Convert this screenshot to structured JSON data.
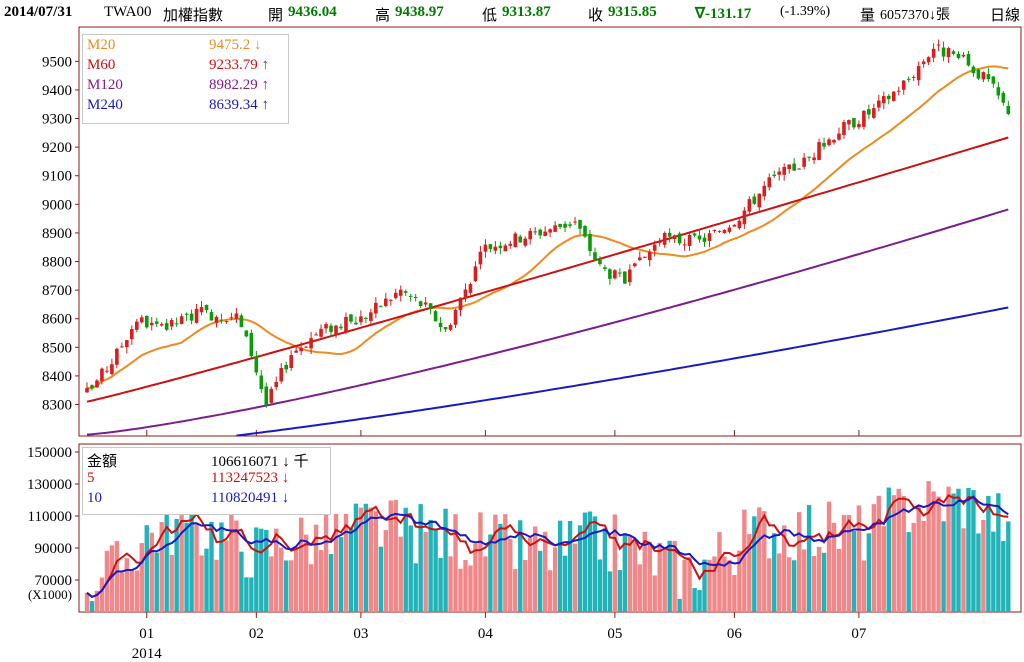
{
  "header": {
    "date": "2014/07/31",
    "symbol": "TWA00",
    "name": "加權指數",
    "open_label": "開",
    "open": "9436.04",
    "high_label": "高",
    "high": "9438.97",
    "low_label": "低",
    "low": "9313.87",
    "close_label": "收",
    "close": "9315.85",
    "change": "∇-131.17",
    "change_pct": "(-1.39%)",
    "volume_label": "量",
    "volume": "6057370↓張",
    "period": "日線"
  },
  "price_legend": [
    {
      "name": "M20",
      "value": "9475.2",
      "arrow": "↓",
      "color": "#ef8a1f"
    },
    {
      "name": "M60",
      "value": "9233.79",
      "arrow": "↑",
      "color": "#cc1111"
    },
    {
      "name": "M120",
      "value": "8982.29",
      "arrow": "↑",
      "color": "#7b1f8f"
    },
    {
      "name": "M240",
      "value": "8639.34",
      "arrow": "↑",
      "color": "#1a1ac0"
    }
  ],
  "volume_legend": [
    {
      "name": "金額",
      "value": "106616071",
      "arrow": "↓",
      "unit": "千",
      "color": "#000000"
    },
    {
      "name": "5",
      "value": "113247523",
      "arrow": "↓",
      "unit": "",
      "color": "#cc1111"
    },
    {
      "name": "10",
      "value": "110820491",
      "arrow": "↓",
      "unit": "",
      "color": "#1a1ac0"
    }
  ],
  "chart_data": {
    "type": "candlestick",
    "x_ticks": [
      "01",
      "02",
      "03",
      "04",
      "05",
      "06",
      "07"
    ],
    "x_sub_label": "2014",
    "price_axis": {
      "ticks": [
        8300,
        8400,
        8500,
        8600,
        8700,
        8800,
        8900,
        9000,
        9100,
        9200,
        9300,
        9400,
        9500
      ],
      "range": [
        8190,
        9620
      ]
    },
    "volume_axis": {
      "ticks": [
        70000,
        90000,
        110000,
        130000,
        150000
      ],
      "range": [
        50000,
        155000
      ],
      "unit_label": "(X1000)"
    },
    "price_anchors": [
      [
        0,
        8340
      ],
      [
        5,
        8450
      ],
      [
        10,
        8600
      ],
      [
        15,
        8560
      ],
      [
        22,
        8620
      ],
      [
        30,
        8610
      ],
      [
        33,
        8480
      ],
      [
        36,
        8300
      ],
      [
        41,
        8480
      ],
      [
        47,
        8560
      ],
      [
        55,
        8600
      ],
      [
        63,
        8700
      ],
      [
        68,
        8640
      ],
      [
        72,
        8560
      ],
      [
        80,
        8850
      ],
      [
        90,
        8900
      ],
      [
        98,
        8940
      ],
      [
        103,
        8780
      ],
      [
        108,
        8730
      ],
      [
        115,
        8880
      ],
      [
        123,
        8870
      ],
      [
        126,
        8900
      ],
      [
        131,
        8960
      ],
      [
        137,
        9080
      ],
      [
        144,
        9150
      ],
      [
        151,
        9260
      ],
      [
        158,
        9330
      ],
      [
        165,
        9440
      ],
      [
        170,
        9550
      ],
      [
        176,
        9500
      ],
      [
        181,
        9430
      ],
      [
        185,
        9320
      ]
    ],
    "volume_anchors": [
      [
        0,
        70000
      ],
      [
        6,
        76000
      ],
      [
        12,
        100000
      ],
      [
        18,
        105000
      ],
      [
        26,
        100000
      ],
      [
        34,
        88000
      ],
      [
        40,
        95000
      ],
      [
        48,
        97000
      ],
      [
        57,
        105000
      ],
      [
        64,
        100000
      ],
      [
        72,
        98000
      ],
      [
        82,
        92000
      ],
      [
        93,
        88000
      ],
      [
        103,
        95000
      ],
      [
        113,
        86000
      ],
      [
        120,
        75000
      ],
      [
        128,
        88000
      ],
      [
        136,
        103000
      ],
      [
        146,
        101000
      ],
      [
        156,
        100000
      ],
      [
        166,
        118000
      ],
      [
        176,
        120000
      ],
      [
        185,
        107000
      ]
    ],
    "ma": [
      {
        "name": "M20",
        "color": "#ef8a1f",
        "start": 0,
        "end_value": 9475.2
      },
      {
        "name": "M60",
        "color": "#cc1111",
        "start": 0,
        "end_value": 9233.79
      },
      {
        "name": "M120",
        "color": "#7b1f8f",
        "start": 0,
        "end_value": 8982.29
      },
      {
        "name": "M240",
        "color": "#1a1ac0",
        "start": 0,
        "end_value": 8639.34
      }
    ],
    "last_close": 9315.85,
    "last_volume": 106616071
  },
  "colors": {
    "up": "#d81e1e",
    "down": "#0a9a0a",
    "vol_a": "#f0888a",
    "vol_b": "#22b3b8",
    "axis": "#8b1a1a",
    "grid": "#8b1a1a"
  }
}
